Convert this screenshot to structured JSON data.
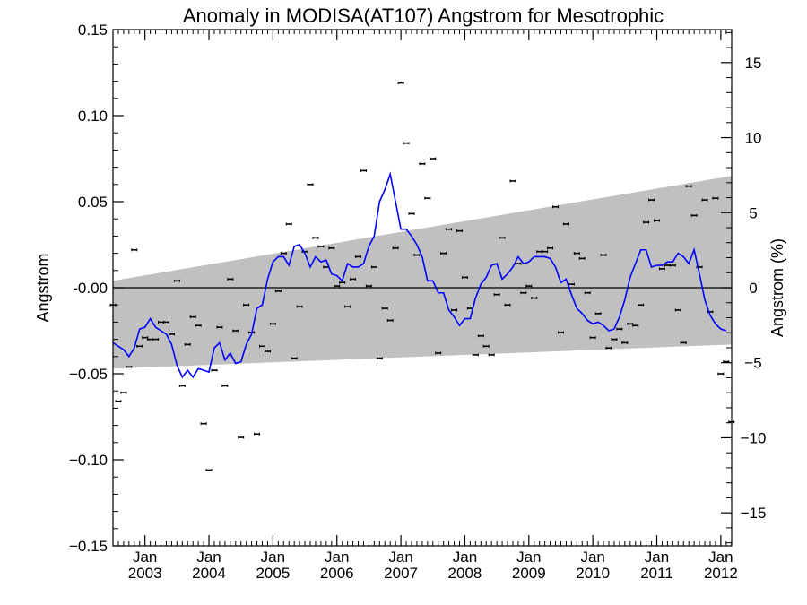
{
  "chart_data": {
    "type": "scatter",
    "title": "Anomaly in MODISA(AT107) Angstrom for Mesotrophic",
    "ylabel_left": "Angstrom",
    "ylabel_right": "Angstrom (%)",
    "xlim": [
      2002.5,
      2012.17
    ],
    "ylim_left": [
      -0.15,
      0.15
    ],
    "ylim_right": [
      -17.2,
      17.2
    ],
    "left_ticks": [
      {
        "v": 0.15,
        "label": "0.15"
      },
      {
        "v": 0.1,
        "label": "0.10"
      },
      {
        "v": 0.05,
        "label": "0.05"
      },
      {
        "v": 0.0,
        "label": "-0.00"
      },
      {
        "v": -0.05,
        "label": "−0.05"
      },
      {
        "v": -0.1,
        "label": "−0.10"
      },
      {
        "v": -0.15,
        "label": "−0.15"
      }
    ],
    "right_ticks": [
      {
        "v": 15,
        "label": "15"
      },
      {
        "v": 10,
        "label": "10"
      },
      {
        "v": 5,
        "label": "5"
      },
      {
        "v": 0,
        "label": "0"
      },
      {
        "v": -5,
        "label": "−5"
      },
      {
        "v": -10,
        "label": "−10"
      },
      {
        "v": -15,
        "label": "−15"
      }
    ],
    "x_ticks": [
      {
        "v": 2003.0,
        "month": "Jan",
        "year": "2003"
      },
      {
        "v": 2004.0,
        "month": "Jan",
        "year": "2004"
      },
      {
        "v": 2005.0,
        "month": "Jan",
        "year": "2005"
      },
      {
        "v": 2006.0,
        "month": "Jan",
        "year": "2006"
      },
      {
        "v": 2007.0,
        "month": "Jan",
        "year": "2007"
      },
      {
        "v": 2008.0,
        "month": "Jan",
        "year": "2008"
      },
      {
        "v": 2009.0,
        "month": "Jan",
        "year": "2009"
      },
      {
        "v": 2010.0,
        "month": "Jan",
        "year": "2010"
      },
      {
        "v": 2011.0,
        "month": "Jan",
        "year": "2011"
      },
      {
        "v": 2012.0,
        "month": "Jan",
        "year": "2012"
      }
    ],
    "band": {
      "start_x": 2002.5,
      "end_x": 2012.17,
      "upper": [
        0.004,
        0.065
      ],
      "lower": [
        -0.047,
        -0.033
      ],
      "color": "#c0c0c0"
    },
    "line_color": "#0000ff",
    "point_color": "#000000",
    "monthly_points": {
      "start": 2002.5,
      "step": 0.08333,
      "values": [
        -0.01,
        -0.066,
        -0.061,
        -0.046,
        0.022,
        -0.034,
        -0.029,
        -0.03,
        -0.03,
        -0.02,
        -0.02,
        -0.027,
        0.004,
        -0.057,
        -0.033,
        -0.017,
        -0.022,
        -0.079,
        -0.106,
        -0.048,
        -0.023,
        -0.057,
        0.005,
        -0.025,
        -0.087,
        -0.01,
        -0.026,
        -0.085,
        -0.034,
        -0.037,
        -0.021,
        -0.002,
        0.02,
        0.037,
        -0.041,
        -0.011,
        0.021,
        0.06,
        0.029,
        0.024,
        0.012,
        0.023,
        0.001,
        0.003,
        -0.011,
        0.005,
        0.018,
        0.068,
        0.001,
        0.012,
        -0.041,
        -0.012,
        -0.019,
        0.023,
        0.119,
        0.084,
        0.043,
        0.019,
        0.072,
        0.052,
        0.075,
        -0.038,
        0.02,
        0.034,
        -0.013,
        0.033,
        0.006,
        -0.012,
        -0.039,
        -0.028,
        -0.034,
        -0.039,
        -0.004,
        0.029,
        -0.01,
        0.062,
        0.014,
        -0.003,
        0.001,
        -0.006,
        0.021,
        0.021,
        0.023,
        0.047,
        -0.026,
        0.037,
        0.002,
        0.02,
        0.017,
        -0.003,
        -0.029,
        -0.015,
        0.019,
        -0.035,
        -0.03,
        -0.024,
        -0.032,
        -0.021,
        -0.022,
        -0.01,
        0.038,
        0.051,
        0.039,
        0.011,
        0.013,
        0.013,
        -0.013,
        -0.032,
        0.059,
        0.042,
        0.012,
        0.051,
        -0.014,
        0.052,
        -0.05,
        -0.043,
        -0.078
      ]
    },
    "smoothed_line": {
      "start": 2002.5,
      "step": 0.08333,
      "values": [
        -0.032,
        -0.034,
        -0.036,
        -0.04,
        -0.035,
        -0.024,
        -0.023,
        -0.018,
        -0.023,
        -0.025,
        -0.027,
        -0.033,
        -0.045,
        -0.052,
        -0.048,
        -0.052,
        -0.047,
        -0.048,
        -0.049,
        -0.035,
        -0.032,
        -0.042,
        -0.038,
        -0.044,
        -0.043,
        -0.033,
        -0.027,
        -0.012,
        -0.01,
        0.005,
        0.015,
        0.018,
        0.018,
        0.013,
        0.024,
        0.025,
        0.02,
        0.012,
        0.018,
        0.015,
        0.016,
        0.008,
        0.007,
        0.004,
        0.014,
        0.012,
        0.012,
        0.014,
        0.024,
        0.03,
        0.05,
        0.057,
        0.066,
        0.05,
        0.034,
        0.034,
        0.03,
        0.025,
        0.018,
        0.004,
        0.004,
        -0.003,
        -0.003,
        -0.013,
        -0.017,
        -0.022,
        -0.018,
        -0.018,
        -0.006,
        0.002,
        0.006,
        0.013,
        0.014,
        0.005,
        0.008,
        0.012,
        0.018,
        0.014,
        0.015,
        0.018,
        0.018,
        0.018,
        0.017,
        0.012,
        0.003,
        0.005,
        -0.004,
        -0.012,
        -0.015,
        -0.019,
        -0.021,
        -0.02,
        -0.022,
        -0.025,
        -0.024,
        -0.017,
        -0.007,
        0.006,
        0.014,
        0.022,
        0.022,
        0.012,
        0.013,
        0.013,
        0.015,
        0.015,
        0.02,
        0.018,
        0.014,
        0.022,
        0.008,
        -0.007,
        -0.016,
        -0.021,
        -0.024,
        -0.025
      ]
    }
  }
}
